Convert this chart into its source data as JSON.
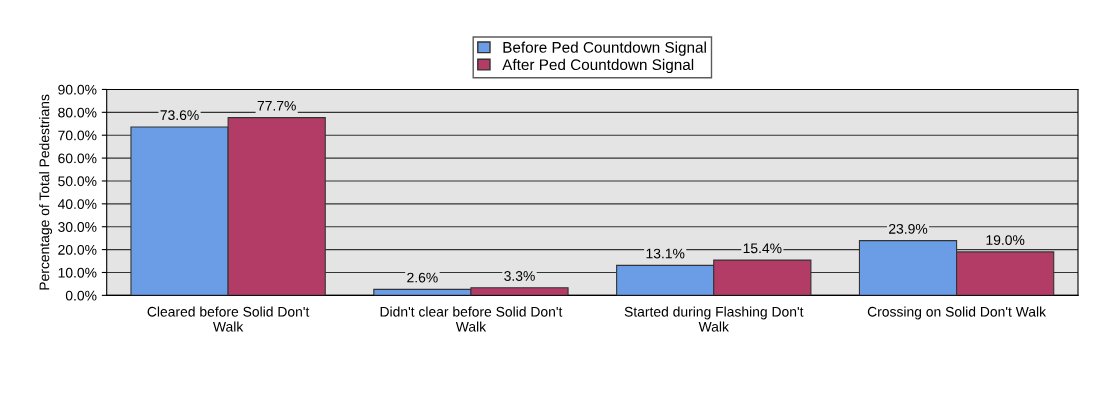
{
  "chart_data": {
    "type": "bar",
    "ylabel": "Percentage of Total Pedestrians",
    "categories": [
      "Cleared before Solid Don't\nWalk",
      "Didn't clear before Solid Don't\nWalk",
      "Started during Flashing Don't\nWalk",
      "Crossing on Solid Don't Walk"
    ],
    "series": [
      {
        "name": "Before Ped Countdown Signal",
        "color": "#6a9de6",
        "values": [
          73.6,
          2.6,
          13.1,
          23.9
        ],
        "value_labels": [
          "73.6%",
          "2.6%",
          "13.1%",
          "23.9%"
        ]
      },
      {
        "name": "After Ped Countdown Signal",
        "color": "#b23c66",
        "values": [
          77.7,
          3.3,
          15.4,
          19.0
        ],
        "value_labels": [
          "77.7%",
          "3.3%",
          "15.4%",
          "19.0%"
        ]
      }
    ],
    "ylim": [
      0,
      90
    ],
    "yticks": [
      {
        "value": 0,
        "label": "0.0%"
      },
      {
        "value": 10,
        "label": "10.0%"
      },
      {
        "value": 20,
        "label": "20.0%"
      },
      {
        "value": 30,
        "label": "30.0%"
      },
      {
        "value": 40,
        "label": "40.0%"
      },
      {
        "value": 50,
        "label": "50.0%"
      },
      {
        "value": 60,
        "label": "60.0%"
      },
      {
        "value": 70,
        "label": "70.0%"
      },
      {
        "value": 80,
        "label": "80.0%"
      },
      {
        "value": 90,
        "label": "90.0%"
      }
    ],
    "grid": "y",
    "legend": "top"
  }
}
